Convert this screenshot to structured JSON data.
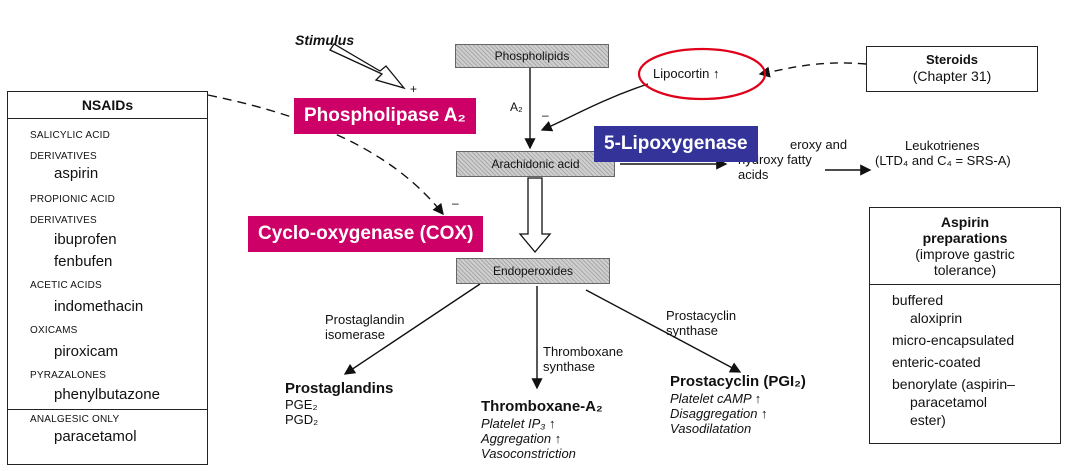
{
  "stimulus": "Stimulus",
  "plus_sign": "+",
  "minus_sign": "–",
  "phospholipids": "Phospholipids",
  "arachidonic_acid": "Arachidonic acid",
  "endoperoxides": "Endoperoxides",
  "lipocortin": "Lipocortin ↑",
  "pla2_fragment": "A₂",
  "steroids": {
    "title": "Steroids",
    "chapter": "(Chapter 31)"
  },
  "hydroperoxy_text": [
    "eroxy and",
    "hydroxy fatty",
    "acids"
  ],
  "leukotrienes": [
    "Leukotrienes",
    "(LTD₄ and C₄ = SRS-A)"
  ],
  "nsaids": {
    "title": "NSAIDs",
    "groups": [
      {
        "cls": [
          "SALICYLIC ACID",
          "DERIVATIVES"
        ],
        "drugs": [
          "aspirin"
        ]
      },
      {
        "cls": [
          "PROPIONIC ACID",
          "DERIVATIVES"
        ],
        "drugs": [
          "ibuprofen",
          "fenbufen"
        ]
      },
      {
        "cls": [
          "ACETIC ACIDS"
        ],
        "drugs": [
          "indomethacin"
        ]
      },
      {
        "cls": [
          "OXICAMS"
        ],
        "drugs": [
          "piroxicam"
        ]
      },
      {
        "cls": [
          "PYRAZALONES"
        ],
        "drugs": [
          "phenylbutazone"
        ]
      }
    ],
    "analgesic_label": "ANALGESIC ONLY",
    "analgesic_drug": "paracetamol"
  },
  "aspirin_preps": {
    "title": [
      "Aspirin",
      "preparations"
    ],
    "subtitle": [
      "(improve gastric",
      "tolerance)"
    ],
    "items": [
      "buffered",
      "aloxiprin",
      "micro-encapsulated",
      "enteric-coated",
      "benorylate (aspirin–",
      "paracetamol",
      "ester)"
    ]
  },
  "pg_isomerase": [
    "Prostaglandin",
    "isomerase"
  ],
  "prostaglandins": {
    "title": "Prostaglandins",
    "items": [
      "PGE₂",
      "PGD₂"
    ]
  },
  "tx_synthase": [
    "Thromboxane",
    "synthase"
  ],
  "thromboxane": {
    "title": "Thromboxane-A₂",
    "effects": [
      "Platelet IP₃ ↑",
      "Aggregation ↑",
      "Vasoconstriction"
    ]
  },
  "pc_synthase": [
    "Prostacyclin",
    "synthase"
  ],
  "prostacyclin": {
    "title": "Prostacyclin (PGI₂)",
    "effects": [
      "Platelet cAMP ↑",
      "Disaggregation ↑",
      "Vasodilatation"
    ]
  },
  "badges": {
    "pla2": "Phospholipase A₂",
    "lox": "5-Lipoxygenase",
    "cox": "Cyclo-oxygenase (COX)"
  },
  "colors": {
    "pink": "#cc0066",
    "blue": "#333399",
    "circle": "#e0001a"
  }
}
